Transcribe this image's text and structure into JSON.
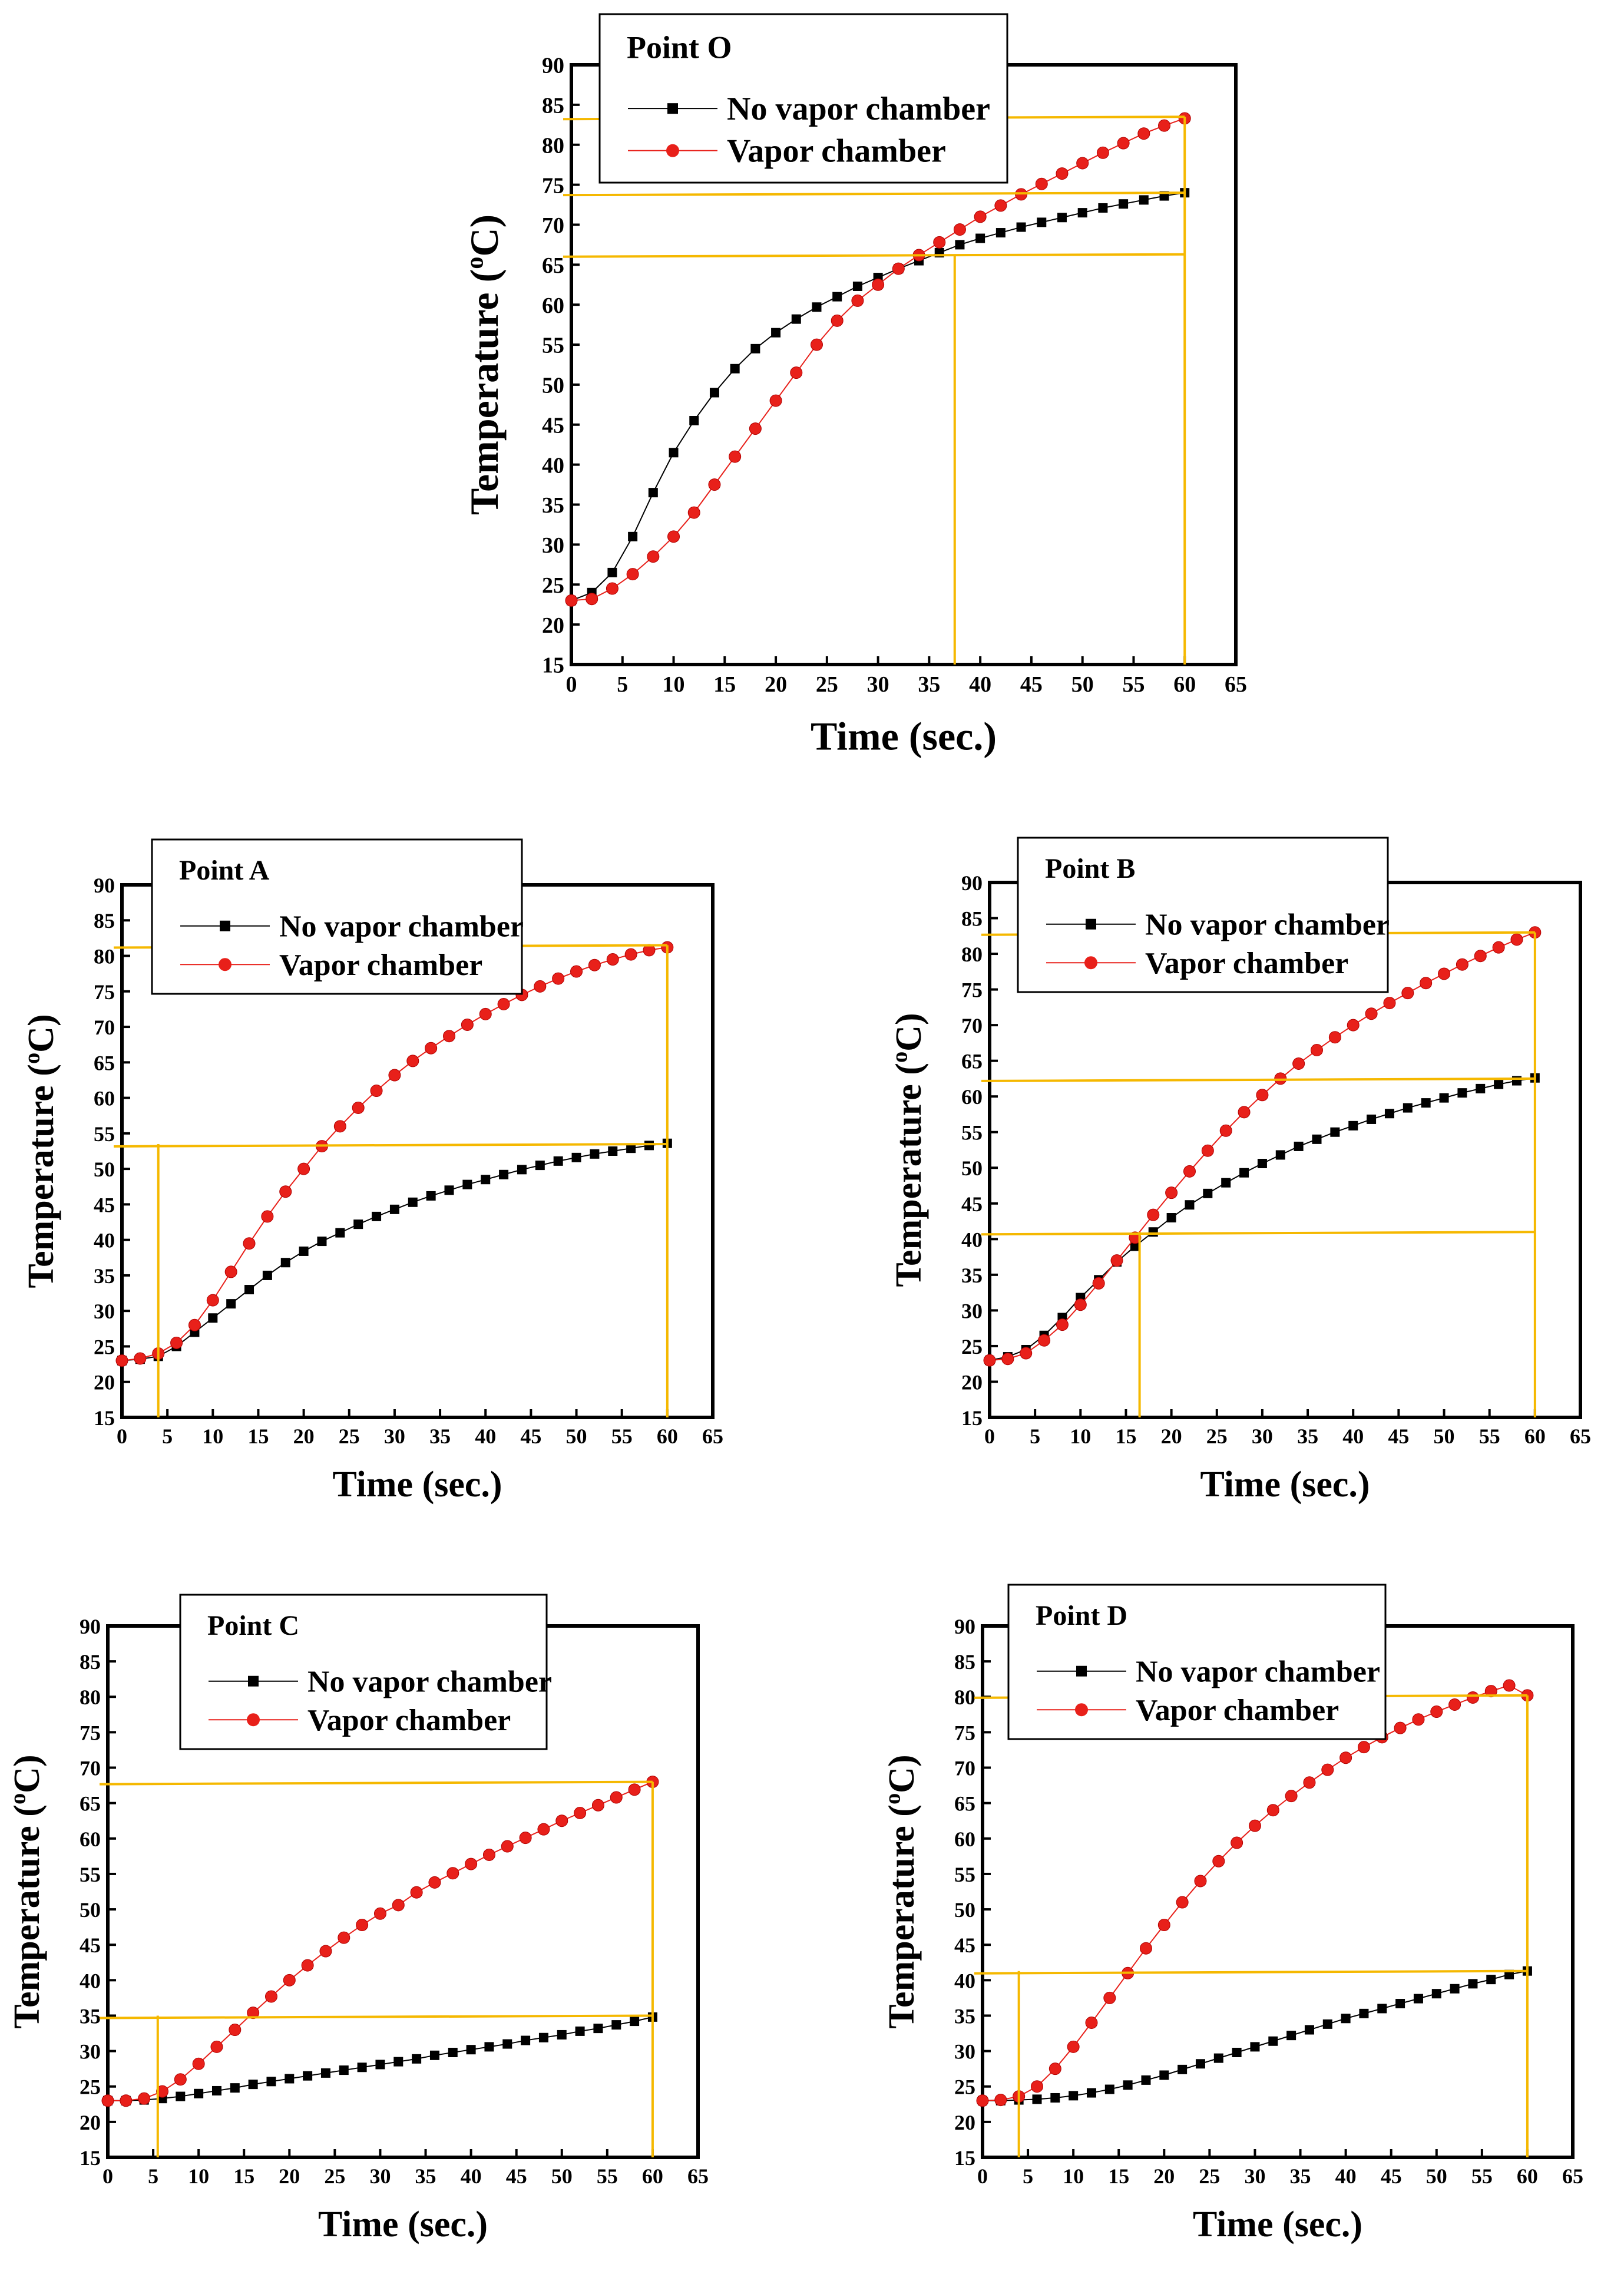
{
  "figure": {
    "x_title": "Time (sec.)",
    "y_title_main": "Temperature (",
    "y_title_sup": "o",
    "y_title_tail": "C)",
    "colors": {
      "no_vc": "#000000",
      "vc": "#e8201a",
      "guide": "#f5b800"
    }
  },
  "chart_data": [
    {
      "id": "O",
      "type": "scatter",
      "title": "Point O",
      "xlim": [
        0,
        65
      ],
      "ylim": [
        15,
        90
      ],
      "xticks": [
        "0",
        "5",
        "10",
        "15",
        "20",
        "25",
        "30",
        "35",
        "40",
        "45",
        "50",
        "55",
        "60",
        "65"
      ],
      "yticks": [
        "15",
        "20",
        "25",
        "30",
        "35",
        "40",
        "45",
        "50",
        "55",
        "60",
        "65",
        "70",
        "75",
        "80",
        "85",
        "90"
      ],
      "series": [
        {
          "name": "No vapor chamber",
          "marker": "square",
          "x": [
            0,
            2,
            4,
            6,
            8,
            10,
            12,
            14,
            16,
            18,
            20,
            22,
            24,
            26,
            28,
            30,
            32,
            34,
            36,
            38,
            40,
            42,
            44,
            46,
            48,
            50,
            52,
            54,
            56,
            58,
            60
          ],
          "y": [
            23,
            24,
            26.5,
            31,
            36.5,
            41.5,
            45.5,
            49,
            52,
            54.5,
            56.5,
            58.2,
            59.7,
            61,
            62.3,
            63.4,
            64.5,
            65.5,
            66.5,
            67.5,
            68.3,
            69,
            69.7,
            70.3,
            70.9,
            71.5,
            72.1,
            72.6,
            73.1,
            73.6,
            74
          ]
        },
        {
          "name": "Vapor chamber",
          "marker": "circle",
          "x": [
            0,
            2,
            4,
            6,
            8,
            10,
            12,
            14,
            16,
            18,
            20,
            22,
            24,
            26,
            28,
            30,
            32,
            34,
            36,
            38,
            40,
            42,
            44,
            46,
            48,
            50,
            52,
            54,
            56,
            58,
            60
          ],
          "y": [
            23,
            23.2,
            24.5,
            26.3,
            28.5,
            31,
            34,
            37.5,
            41,
            44.5,
            48,
            51.5,
            55,
            58,
            60.5,
            62.5,
            64.5,
            66.2,
            67.8,
            69.4,
            71,
            72.4,
            73.8,
            75.1,
            76.4,
            77.7,
            79,
            80.2,
            81.4,
            82.4,
            83.3
          ]
        }
      ],
      "guides_h": [
        83.5,
        74,
        66.3
      ],
      "guides_v": [
        37.5,
        60
      ]
    },
    {
      "id": "A",
      "type": "scatter",
      "title": "Point A",
      "xlim": [
        0,
        65
      ],
      "ylim": [
        15,
        90
      ],
      "xticks": [
        "0",
        "5",
        "10",
        "15",
        "20",
        "25",
        "30",
        "35",
        "40",
        "45",
        "50",
        "55",
        "60",
        "65"
      ],
      "yticks": [
        "15",
        "20",
        "25",
        "30",
        "35",
        "40",
        "45",
        "50",
        "55",
        "60",
        "65",
        "70",
        "75",
        "80",
        "85",
        "90"
      ],
      "series": [
        {
          "name": "No vapor chamber",
          "marker": "square",
          "x": [
            0,
            2,
            4,
            6,
            8,
            10,
            12,
            14,
            16,
            18,
            20,
            22,
            24,
            26,
            28,
            30,
            32,
            34,
            36,
            38,
            40,
            42,
            44,
            46,
            48,
            50,
            52,
            54,
            56,
            58,
            60
          ],
          "y": [
            23,
            23.2,
            23.6,
            25,
            27,
            29,
            31,
            33,
            35,
            36.8,
            38.4,
            39.8,
            41,
            42.2,
            43.3,
            44.3,
            45.3,
            46.2,
            47,
            47.8,
            48.5,
            49.2,
            49.9,
            50.5,
            51.1,
            51.6,
            52.1,
            52.5,
            52.9,
            53.3,
            53.6
          ]
        },
        {
          "name": "Vapor chamber",
          "marker": "circle",
          "x": [
            0,
            2,
            4,
            6,
            8,
            10,
            12,
            14,
            16,
            18,
            20,
            22,
            24,
            26,
            28,
            30,
            32,
            34,
            36,
            38,
            40,
            42,
            44,
            46,
            48,
            50,
            52,
            54,
            56,
            58,
            60
          ],
          "y": [
            23,
            23.3,
            24,
            25.5,
            28,
            31.5,
            35.5,
            39.5,
            43.3,
            46.8,
            50,
            53.2,
            56,
            58.6,
            61,
            63.2,
            65.2,
            67,
            68.7,
            70.3,
            71.8,
            73.2,
            74.5,
            75.7,
            76.8,
            77.8,
            78.7,
            79.5,
            80.2,
            80.8,
            81.2
          ]
        }
      ],
      "guides_h": [
        81.5,
        53.5
      ],
      "guides_v": [
        4,
        60
      ]
    },
    {
      "id": "B",
      "type": "scatter",
      "title": "Point B",
      "xlim": [
        0,
        65
      ],
      "ylim": [
        15,
        90
      ],
      "xticks": [
        "0",
        "5",
        "10",
        "15",
        "20",
        "25",
        "30",
        "35",
        "40",
        "45",
        "50",
        "55",
        "60",
        "65"
      ],
      "yticks": [
        "15",
        "20",
        "25",
        "30",
        "35",
        "40",
        "45",
        "50",
        "55",
        "60",
        "65",
        "70",
        "75",
        "80",
        "85",
        "90"
      ],
      "series": [
        {
          "name": "No vapor chamber",
          "marker": "square",
          "x": [
            0,
            2,
            4,
            6,
            8,
            10,
            12,
            14,
            16,
            18,
            20,
            22,
            24,
            26,
            28,
            30,
            32,
            34,
            36,
            38,
            40,
            42,
            44,
            46,
            48,
            50,
            52,
            54,
            56,
            58,
            60
          ],
          "y": [
            23,
            23.5,
            24.5,
            26.5,
            29,
            31.8,
            34.3,
            36.8,
            39,
            41,
            43,
            44.8,
            46.4,
            47.9,
            49.3,
            50.6,
            51.8,
            53,
            54,
            55,
            55.9,
            56.8,
            57.6,
            58.4,
            59.1,
            59.8,
            60.5,
            61.1,
            61.7,
            62.2,
            62.6
          ]
        },
        {
          "name": "Vapor chamber",
          "marker": "circle",
          "x": [
            0,
            2,
            4,
            6,
            8,
            10,
            12,
            14,
            16,
            18,
            20,
            22,
            24,
            26,
            28,
            30,
            32,
            34,
            36,
            38,
            40,
            42,
            44,
            46,
            48,
            50,
            52,
            54,
            56,
            58,
            60
          ],
          "y": [
            23,
            23.2,
            24,
            25.8,
            28,
            30.8,
            33.8,
            37,
            40.2,
            43.4,
            46.5,
            49.5,
            52.4,
            55.2,
            57.8,
            60.2,
            62.5,
            64.6,
            66.5,
            68.3,
            70,
            71.6,
            73.1,
            74.5,
            75.9,
            77.2,
            78.5,
            79.7,
            80.9,
            82,
            83
          ]
        }
      ],
      "guides_h": [
        83,
        62.5,
        41
      ],
      "guides_v": [
        16.5,
        60
      ]
    },
    {
      "id": "C",
      "type": "scatter",
      "title": "Point C",
      "xlim": [
        0,
        65
      ],
      "ylim": [
        15,
        90
      ],
      "xticks": [
        "0",
        "5",
        "10",
        "15",
        "20",
        "25",
        "30",
        "35",
        "40",
        "45",
        "50",
        "55",
        "60",
        "65"
      ],
      "yticks": [
        "15",
        "20",
        "25",
        "30",
        "35",
        "40",
        "45",
        "50",
        "55",
        "60",
        "65",
        "70",
        "75",
        "80",
        "85",
        "90"
      ],
      "series": [
        {
          "name": "No vapor chamber",
          "marker": "square",
          "x": [
            0,
            2,
            4,
            6,
            8,
            10,
            12,
            14,
            16,
            18,
            20,
            22,
            24,
            26,
            28,
            30,
            32,
            34,
            36,
            38,
            40,
            42,
            44,
            46,
            48,
            50,
            52,
            54,
            56,
            58,
            60
          ],
          "y": [
            23,
            23,
            23.1,
            23.3,
            23.6,
            24,
            24.4,
            24.8,
            25.3,
            25.7,
            26.1,
            26.5,
            26.9,
            27.3,
            27.7,
            28.1,
            28.5,
            28.9,
            29.4,
            29.8,
            30.2,
            30.6,
            31,
            31.5,
            31.9,
            32.3,
            32.8,
            33.2,
            33.7,
            34.2,
            34.8
          ]
        },
        {
          "name": "Vapor chamber",
          "marker": "circle",
          "x": [
            0,
            2,
            4,
            6,
            8,
            10,
            12,
            14,
            16,
            18,
            20,
            22,
            24,
            26,
            28,
            30,
            32,
            34,
            36,
            38,
            40,
            42,
            44,
            46,
            48,
            50,
            52,
            54,
            56,
            58,
            60
          ],
          "y": [
            23,
            23,
            23.3,
            24.3,
            26,
            28.2,
            30.6,
            33,
            35.4,
            37.7,
            40,
            42.1,
            44.1,
            46,
            47.8,
            49.4,
            50.6,
            52.4,
            53.8,
            55.1,
            56.4,
            57.7,
            58.9,
            60.1,
            61.3,
            62.5,
            63.6,
            64.7,
            65.8,
            66.9,
            68
          ]
        }
      ],
      "guides_h": [
        68,
        35
      ],
      "guides_v": [
        5.5,
        60
      ]
    },
    {
      "id": "D",
      "type": "scatter",
      "title": "Point D",
      "xlim": [
        0,
        65
      ],
      "ylim": [
        15,
        90
      ],
      "xticks": [
        "0",
        "5",
        "10",
        "15",
        "20",
        "25",
        "30",
        "35",
        "40",
        "45",
        "50",
        "55",
        "60",
        "65"
      ],
      "yticks": [
        "15",
        "20",
        "25",
        "30",
        "35",
        "40",
        "45",
        "50",
        "55",
        "60",
        "65",
        "70",
        "75",
        "80",
        "85",
        "90"
      ],
      "series": [
        {
          "name": "No vapor chamber",
          "marker": "square",
          "x": [
            0,
            2,
            4,
            6,
            8,
            10,
            12,
            14,
            16,
            18,
            20,
            22,
            24,
            26,
            28,
            30,
            32,
            34,
            36,
            38,
            40,
            42,
            44,
            46,
            48,
            50,
            52,
            54,
            56,
            58,
            60
          ],
          "y": [
            23,
            23,
            23.1,
            23.2,
            23.4,
            23.7,
            24.1,
            24.6,
            25.2,
            25.9,
            26.6,
            27.4,
            28.2,
            29,
            29.8,
            30.6,
            31.4,
            32.2,
            33,
            33.8,
            34.6,
            35.3,
            36,
            36.7,
            37.4,
            38.1,
            38.8,
            39.5,
            40.1,
            40.8,
            41.3
          ]
        },
        {
          "name": "Vapor chamber",
          "marker": "circle",
          "x": [
            0,
            2,
            4,
            6,
            8,
            10,
            12,
            14,
            16,
            18,
            20,
            22,
            24,
            26,
            28,
            30,
            32,
            34,
            36,
            38,
            40,
            42,
            44,
            46,
            48,
            50,
            52,
            54,
            56,
            58,
            60
          ],
          "y": [
            23,
            23.1,
            23.6,
            25,
            27.5,
            30.6,
            34,
            37.5,
            41,
            44.5,
            47.8,
            51,
            54,
            56.8,
            59.4,
            61.8,
            64,
            66,
            67.9,
            69.7,
            71.4,
            72.9,
            74.3,
            75.6,
            76.8,
            77.9,
            78.9,
            79.9,
            80.8,
            81.6,
            80.2
          ]
        }
      ],
      "guides_h": [
        80.2,
        41.3
      ],
      "guides_v": [
        4,
        60
      ]
    }
  ]
}
